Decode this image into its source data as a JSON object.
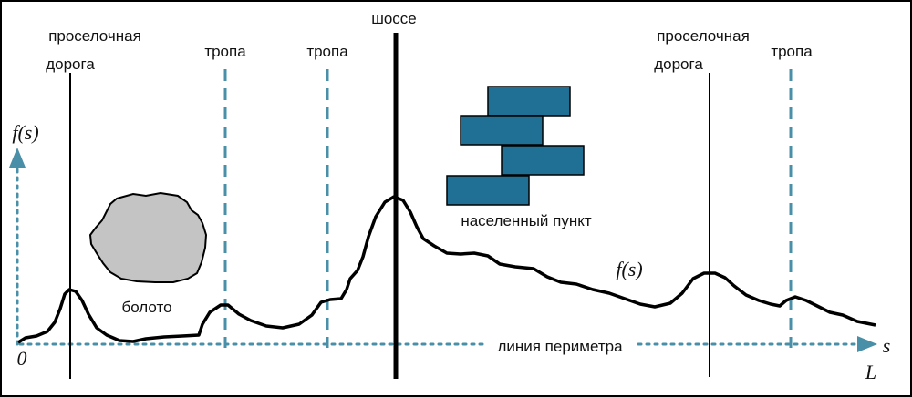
{
  "labels": {
    "dirt_road_left_1": "проселочная",
    "dirt_road_left_2": "дорога",
    "path_1": "тропа",
    "path_2": "тропа",
    "highway": "шоссе",
    "dirt_road_right_1": "проселочная",
    "dirt_road_right_2": "дорога",
    "path_3": "тропа",
    "swamp": "болото",
    "settlement": "населенный пункт",
    "perimeter": "линия периметра",
    "fs_axis": "f(s)",
    "fs_curve": "f(s)",
    "origin": "0",
    "s_axis": "s",
    "L_mark": "L"
  },
  "colors": {
    "accent": "#4a8fa8",
    "settlement_fill": "#206f94",
    "swamp_fill": "#c4c4c4",
    "line": "#000000"
  }
}
